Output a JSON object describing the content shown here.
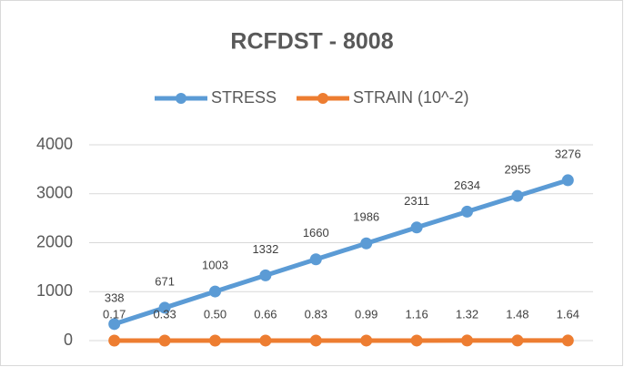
{
  "chart_data": {
    "type": "line",
    "title": "RCFDST - 8008",
    "series": [
      {
        "name": "STRESS",
        "color": "#5b9bd5",
        "values": [
          338,
          671,
          1003,
          1332,
          1660,
          1986,
          2311,
          2634,
          2955,
          3276
        ]
      },
      {
        "name": "STRAIN (10^-2)",
        "color": "#ed7d31",
        "values": [
          0.17,
          0.33,
          0.5,
          0.66,
          0.83,
          0.99,
          1.16,
          1.32,
          1.48,
          1.64
        ],
        "value_labels": [
          "0.17",
          "0.33",
          "0.50",
          "0.66",
          "0.83",
          "0.99",
          "1.16",
          "1.32",
          "1.48",
          "1.64"
        ]
      }
    ],
    "ylim": [
      0,
      4000
    ],
    "yticks": [
      0,
      1000,
      2000,
      3000,
      4000
    ],
    "grid": true,
    "legend": "top"
  }
}
